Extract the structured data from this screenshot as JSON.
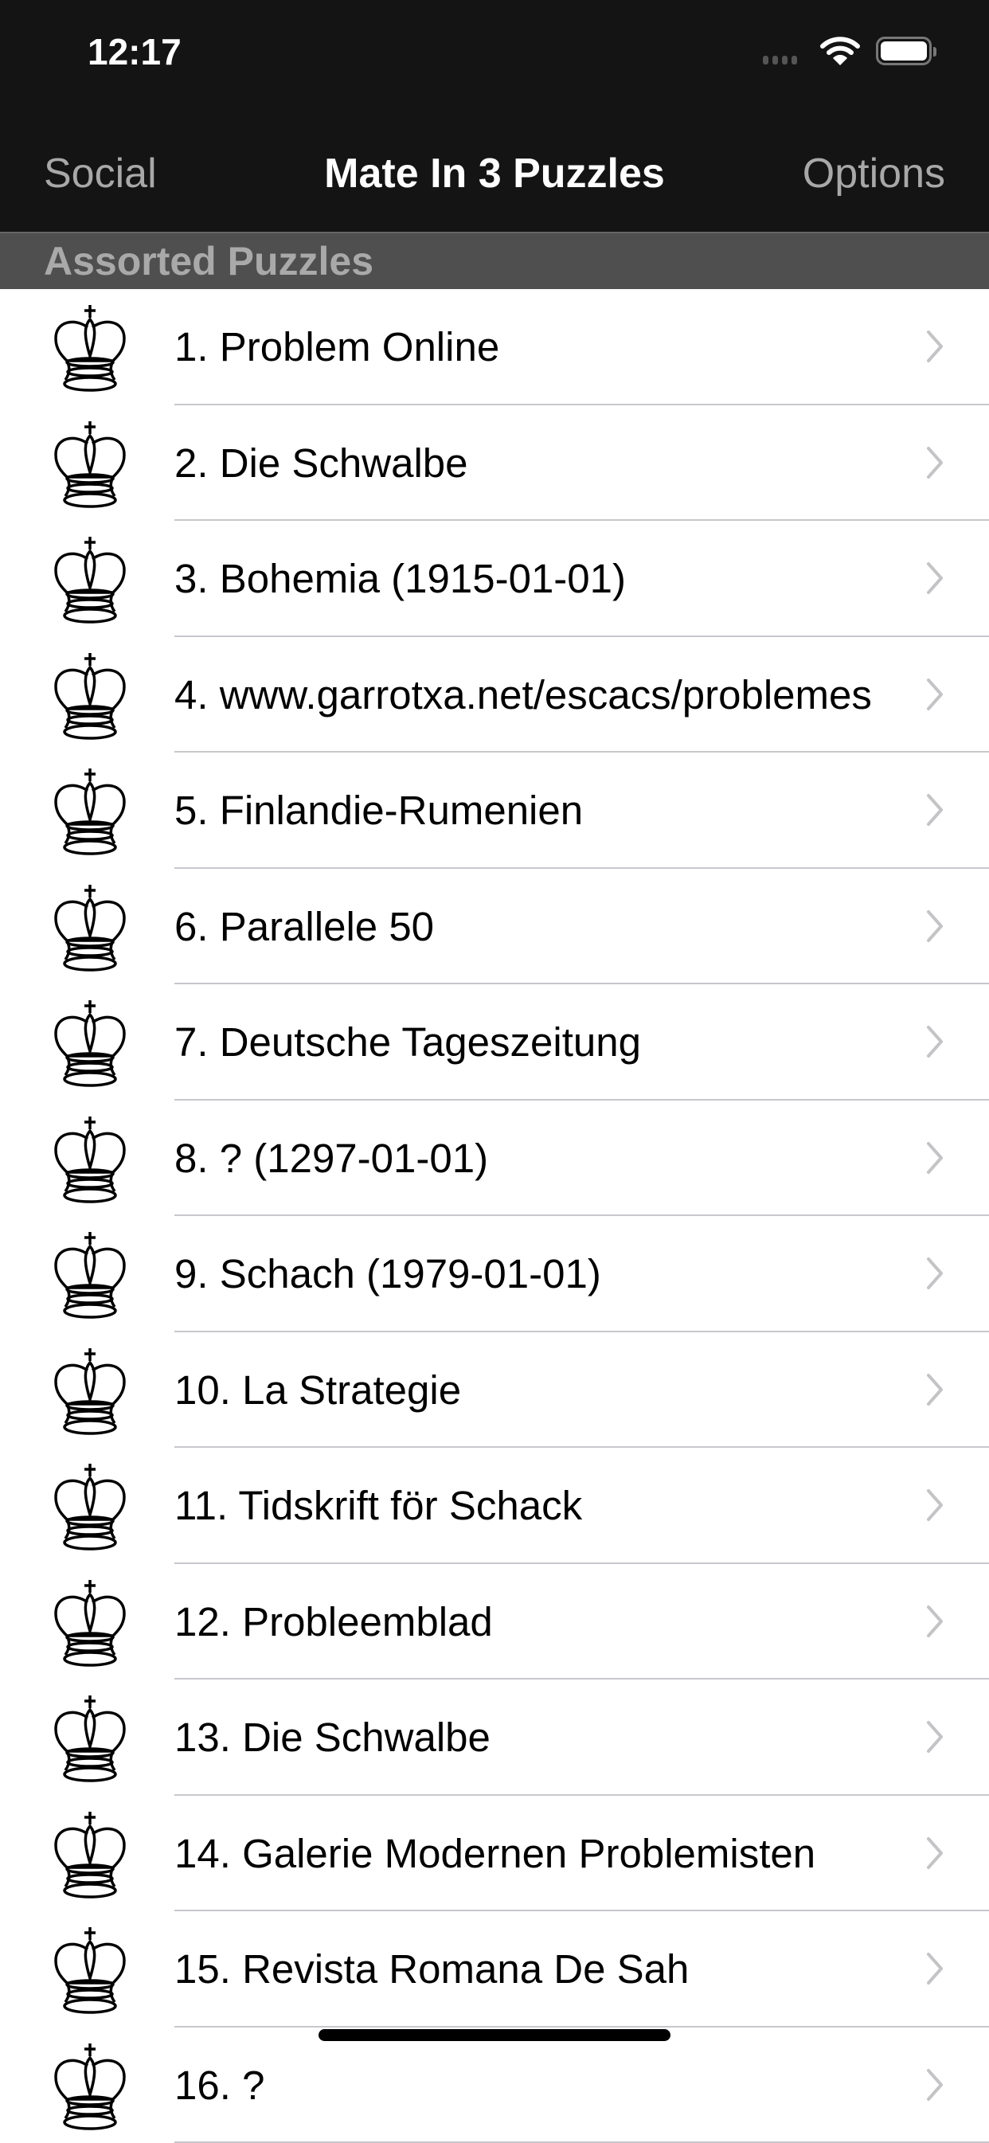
{
  "status_bar": {
    "time": "12:17",
    "wifi_icon": "wifi-icon",
    "battery_icon": "battery-icon"
  },
  "nav": {
    "left_label": "Social",
    "title": "Mate In 3 Puzzles",
    "right_label": "Options"
  },
  "section": {
    "title": "Assorted Puzzles"
  },
  "list_icon": "chess-king-icon",
  "items": [
    {
      "label": "1. Problem Online"
    },
    {
      "label": "2. Die Schwalbe"
    },
    {
      "label": "3. Bohemia (1915-01-01)"
    },
    {
      "label": "4. www.garrotxa.net/escacs/problemes"
    },
    {
      "label": "5. Finlandie-Rumenien"
    },
    {
      "label": "6. Parallele 50"
    },
    {
      "label": "7. Deutsche Tageszeitung"
    },
    {
      "label": "8. ? (1297-01-01)"
    },
    {
      "label": "9. Schach (1979-01-01)"
    },
    {
      "label": "10. La Strategie"
    },
    {
      "label": "11. Tidskrift för Schack"
    },
    {
      "label": "12. Probleemblad"
    },
    {
      "label": "13. Die Schwalbe"
    },
    {
      "label": "14. Galerie Modernen Problemisten"
    },
    {
      "label": "15. Revista Romana De Sah"
    },
    {
      "label": "16. ?"
    }
  ]
}
